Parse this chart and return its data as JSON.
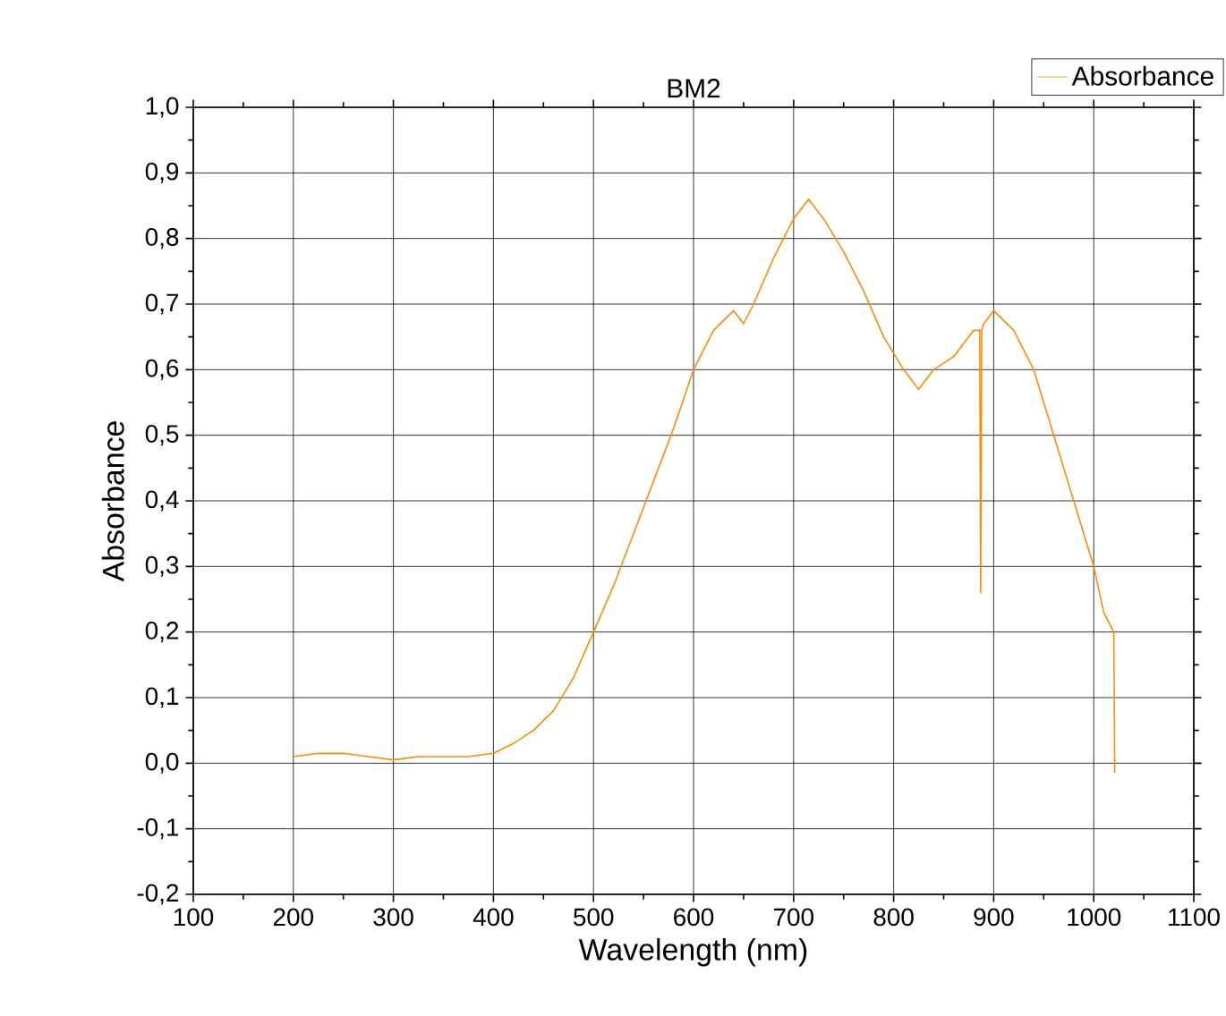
{
  "chart_data": {
    "type": "line",
    "title": "BM2",
    "xlabel": "Wavelength (nm)",
    "ylabel": "Absorbance",
    "xlim": [
      100,
      1100
    ],
    "xticks": [
      100,
      200,
      300,
      400,
      500,
      600,
      700,
      800,
      900,
      1000,
      1100
    ],
    "ylim": [
      -0.2,
      1.0
    ],
    "yticks": [
      {
        "value": -0.2,
        "label": "-0,2"
      },
      {
        "value": -0.1,
        "label": "-0,1"
      },
      {
        "value": 0.0,
        "label": "0,0"
      },
      {
        "value": 0.1,
        "label": "0,1"
      },
      {
        "value": 0.2,
        "label": "0,2"
      },
      {
        "value": 0.3,
        "label": "0,3"
      },
      {
        "value": 0.4,
        "label": "0,4"
      },
      {
        "value": 0.5,
        "label": "0,5"
      },
      {
        "value": 0.6,
        "label": "0,6"
      },
      {
        "value": 0.7,
        "label": "0,7"
      },
      {
        "value": 0.8,
        "label": "0,8"
      },
      {
        "value": 0.9,
        "label": "0,9"
      },
      {
        "value": 1.0,
        "label": "1,0"
      }
    ],
    "grid": true,
    "legend": "top right",
    "marker": "none",
    "line_style": "solid",
    "series": [
      {
        "name": "Absorbance",
        "color": "#ff8c00",
        "x": [
          200,
          225,
          250,
          275,
          300,
          325,
          350,
          375,
          400,
          420,
          440,
          460,
          480,
          500,
          520,
          540,
          560,
          580,
          600,
          620,
          640,
          650,
          660,
          680,
          700,
          715,
          730,
          750,
          770,
          790,
          810,
          825,
          840,
          860,
          880,
          886,
          887,
          888,
          890,
          900,
          920,
          940,
          960,
          980,
          1000,
          1010,
          1020,
          1021
        ],
        "values": [
          0.01,
          0.015,
          0.015,
          0.01,
          0.005,
          0.01,
          0.01,
          0.01,
          0.015,
          0.03,
          0.05,
          0.08,
          0.13,
          0.2,
          0.27,
          0.35,
          0.43,
          0.51,
          0.6,
          0.66,
          0.69,
          0.67,
          0.7,
          0.77,
          0.83,
          0.86,
          0.83,
          0.78,
          0.72,
          0.65,
          0.6,
          0.57,
          0.6,
          0.62,
          0.66,
          0.66,
          0.26,
          0.66,
          0.67,
          0.69,
          0.66,
          0.6,
          0.5,
          0.4,
          0.3,
          0.23,
          0.2,
          -0.015
        ]
      }
    ]
  }
}
